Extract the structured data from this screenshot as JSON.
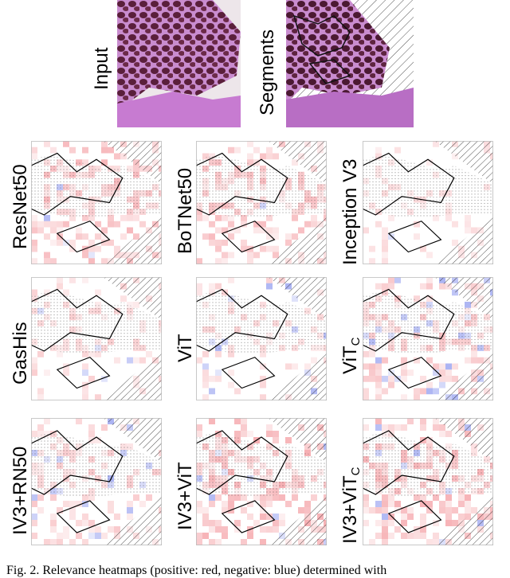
{
  "top_row": {
    "input_label": "Input",
    "segments_label": "Segments"
  },
  "heatmap_labels": {
    "resnet50": "ResNet50",
    "botnet50": "BoTNet50",
    "inception_v3": "Inception V3",
    "gashis": "GasHis",
    "vit": "ViT",
    "vitc_main": "ViT",
    "vitc_sub": "C",
    "iv3_rn50": "IV3+RN50",
    "iv3_vit": "IV3+ViT",
    "iv3_vitc_main": "IV3+ViT",
    "iv3_vitc_sub": "C"
  },
  "colors": {
    "positive": "#e8303a",
    "negative": "#2a3fe0",
    "tissue_dark": "#5a1f3b",
    "tissue_light": "#c98ccf"
  },
  "caption": {
    "text": "Fig. 2.   Relevance heatmaps (positive: red, negative: blue) determined with"
  }
}
